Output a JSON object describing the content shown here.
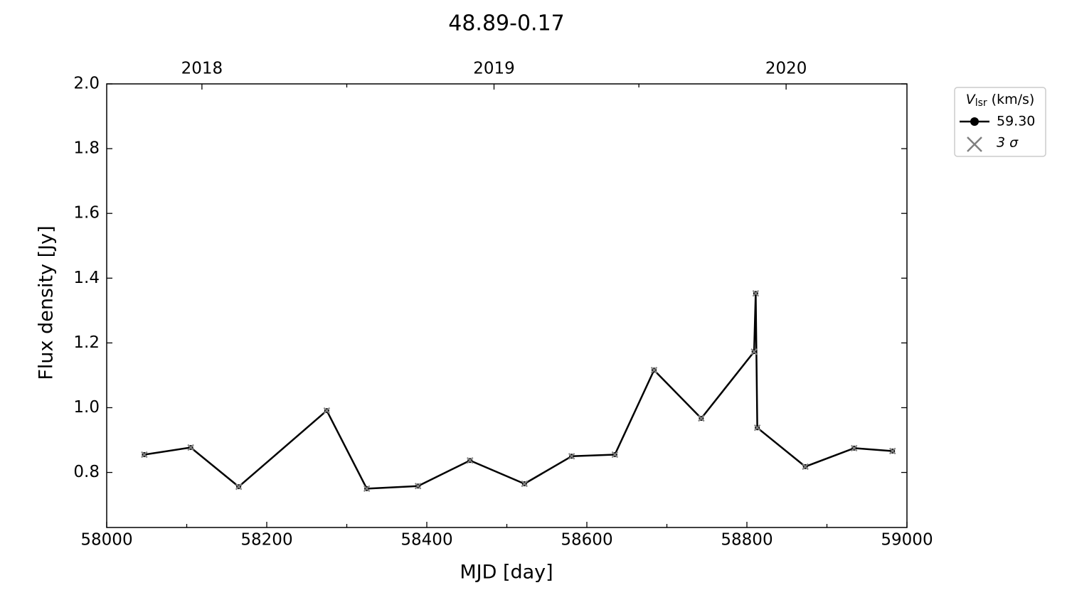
{
  "chart_data": {
    "type": "line",
    "title": "48.89-0.17",
    "xlabel": "MJD [day]",
    "ylabel": "Flux density [Jy]",
    "x": [
      58047,
      58105,
      58165,
      58275,
      58325,
      58389,
      58454,
      58522,
      58581,
      58635,
      58684,
      58743,
      58809,
      58811,
      58813,
      58873,
      58934,
      58982
    ],
    "series": [
      {
        "name": "59.30",
        "color": "#000000",
        "values": [
          0.855,
          0.877,
          0.756,
          0.991,
          0.75,
          0.758,
          0.837,
          0.765,
          0.85,
          0.855,
          1.116,
          0.967,
          1.173,
          1.353,
          0.938,
          0.818,
          0.875,
          0.866
        ]
      }
    ],
    "sigma_marker": {
      "label": "3 σ",
      "color": "#808080"
    },
    "legend_title": {
      "symbol": "V",
      "subscript": "lsr",
      "unit": "(km/s)"
    },
    "legend": "outside-upper-right",
    "xlim": [
      58000,
      59000
    ],
    "xticks": [
      58000,
      58200,
      58400,
      58600,
      58800,
      59000
    ],
    "xminorticks": [
      58100,
      58300,
      58500,
      58700,
      58900
    ],
    "x2ticks": [
      {
        "value": 58119,
        "label": "2018"
      },
      {
        "value": 58484,
        "label": "2019"
      },
      {
        "value": 58849,
        "label": "2020"
      }
    ],
    "x2minorticks": [
      58300,
      58665
    ],
    "ylim": [
      0.63,
      2.0
    ],
    "yticks": [
      {
        "value": 0.8,
        "label": "0.8"
      },
      {
        "value": 1.0,
        "label": "1.0"
      },
      {
        "value": 1.2,
        "label": "1.2"
      },
      {
        "value": 1.4,
        "label": "1.4"
      },
      {
        "value": 1.6,
        "label": "1.6"
      },
      {
        "value": 1.8,
        "label": "1.8"
      },
      {
        "value": 2.0,
        "label": "2.0"
      }
    ]
  }
}
